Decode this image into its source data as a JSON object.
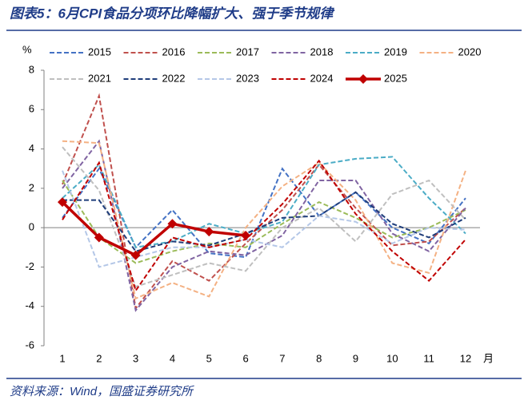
{
  "chart_data": {
    "type": "line",
    "title": "图表5：6月CPI食品分项环比降幅扩大、强于季节规律",
    "source": "资料来源：Wind，国盛证券研究所",
    "y_label": "%",
    "x_label": "月",
    "categories": [
      "1",
      "2",
      "3",
      "4",
      "5",
      "6",
      "7",
      "8",
      "9",
      "10",
      "11",
      "12"
    ],
    "ylim": [
      -6,
      8
    ],
    "yticks": [
      -6,
      -4,
      -2,
      0,
      2,
      4,
      6,
      8
    ],
    "series": [
      {
        "name": "2015",
        "color": "#4472c4",
        "values": [
          0.5,
          3.0,
          -1.0,
          0.9,
          -1.3,
          -1.5,
          3.0,
          0.6,
          1.8,
          0.0,
          -0.8,
          1.5
        ]
      },
      {
        "name": "2016",
        "color": "#c0504d",
        "values": [
          2.2,
          6.7,
          -4.1,
          -1.7,
          -2.7,
          -0.8,
          0.9,
          3.2,
          1.0,
          -0.9,
          -0.7,
          1.0
        ]
      },
      {
        "name": "2017",
        "color": "#9bbb59",
        "values": [
          2.4,
          -0.5,
          -1.8,
          -1.2,
          -0.8,
          -1.0,
          0.2,
          1.3,
          0.5,
          -0.5,
          0.0,
          0.9
        ]
      },
      {
        "name": "2018",
        "color": "#8064a2",
        "values": [
          2.0,
          4.4,
          -4.2,
          -2.0,
          -1.2,
          -1.4,
          -0.4,
          2.4,
          2.4,
          -0.3,
          -1.2,
          1.0
        ]
      },
      {
        "name": "2019",
        "color": "#4bacc6",
        "values": [
          1.5,
          3.2,
          -1.0,
          -0.7,
          0.2,
          -0.3,
          0.3,
          3.2,
          3.5,
          3.6,
          1.5,
          -0.3
        ]
      },
      {
        "name": "2020",
        "color": "#f4b183",
        "values": [
          4.4,
          4.3,
          -3.6,
          -2.8,
          -3.5,
          0.0,
          2.1,
          3.3,
          1.4,
          -1.8,
          -2.3,
          2.9
        ]
      },
      {
        "name": "2021",
        "color": "#bfbfbf",
        "values": [
          4.1,
          1.9,
          -3.0,
          -2.4,
          -1.8,
          -2.2,
          0.0,
          1.0,
          -0.7,
          1.7,
          2.4,
          0.4
        ]
      },
      {
        "name": "2022",
        "color": "#1f3d7a",
        "values": [
          1.4,
          1.4,
          -1.2,
          -0.7,
          -0.9,
          -0.3,
          0.5,
          0.6,
          1.8,
          0.2,
          -0.5,
          0.5
        ]
      },
      {
        "name": "2023",
        "color": "#b4c7e7",
        "values": [
          2.9,
          -2.0,
          -1.5,
          -1.0,
          -1.0,
          -0.6,
          -1.0,
          0.6,
          0.3,
          -0.8,
          0.0,
          -0.1
        ]
      },
      {
        "name": "2024",
        "color": "#c00000",
        "values": [
          0.4,
          3.3,
          -3.2,
          -0.5,
          -1.0,
          -0.6,
          1.2,
          3.4,
          0.7,
          -1.2,
          -2.7,
          -0.6
        ]
      },
      {
        "name": "2025",
        "color": "#c00000",
        "solid": true,
        "values": [
          1.3,
          -0.5,
          -1.4,
          0.2,
          -0.2,
          -0.4,
          null,
          null,
          null,
          null,
          null,
          null
        ]
      }
    ]
  }
}
